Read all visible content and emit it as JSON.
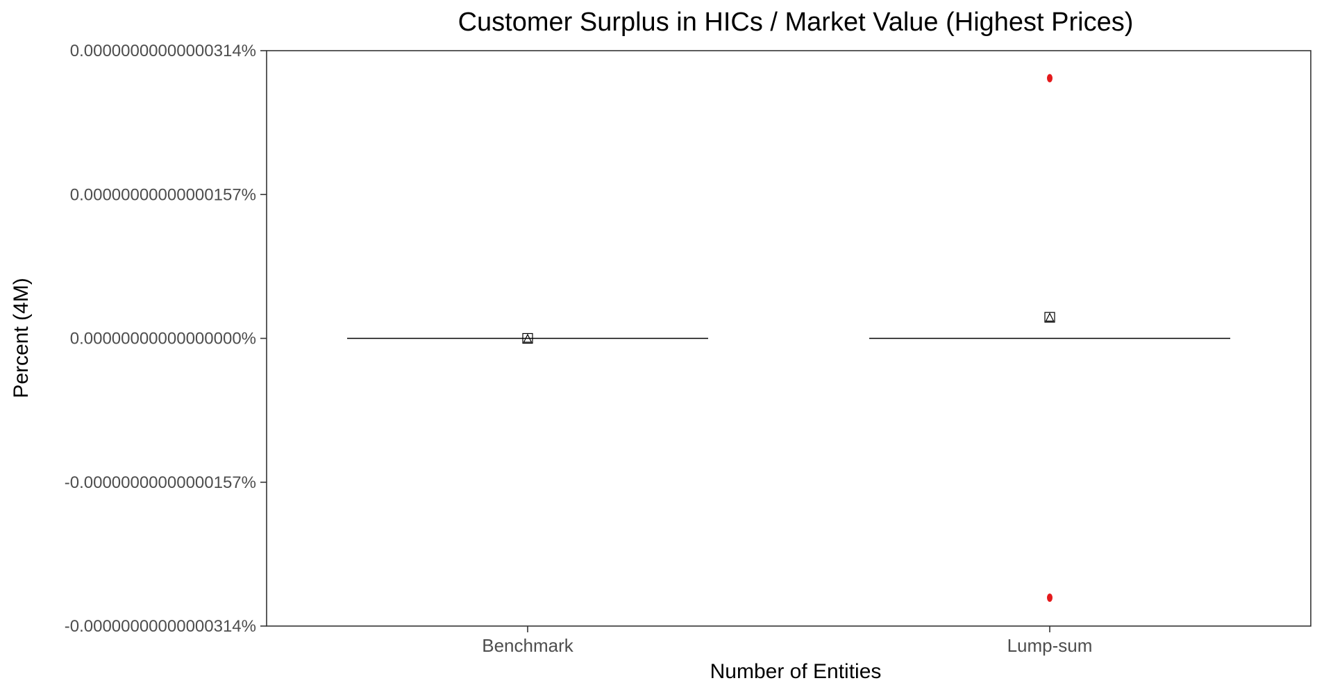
{
  "chart_data": {
    "type": "box",
    "title": "Customer Surplus in HICs / Market Value (Highest Prices)",
    "xlabel": "Number of Entities",
    "ylabel": "Percent (4M)",
    "categories": [
      "Benchmark",
      "Lump-sum"
    ],
    "y_ticks": [
      {
        "value": 3.14e-15,
        "label": "0.00000000000000314%"
      },
      {
        "value": 1.57e-15,
        "label": "0.00000000000000157%"
      },
      {
        "value": 0,
        "label": "0.00000000000000000%"
      },
      {
        "value": -1.57e-15,
        "label": "-0.00000000000000157%"
      },
      {
        "value": -3.14e-15,
        "label": "-0.00000000000000314%"
      }
    ],
    "ylim": [
      -3.14e-15,
      3.14e-15
    ],
    "grid": false,
    "legend": "none",
    "boxes": [
      {
        "category": "Benchmark",
        "median": 0,
        "q1": 0,
        "q3": 0,
        "whisker_low": 0,
        "whisker_high": 0,
        "mean": 0,
        "outliers": []
      },
      {
        "category": "Lump-sum",
        "median": 0,
        "q1": 0,
        "q3": 0,
        "whisker_low": 0,
        "whisker_high": 0,
        "mean": 2.3e-16,
        "outliers": [
          2.84e-15,
          -2.83e-15
        ]
      }
    ],
    "colors": {
      "box_line": "#000000",
      "outlier": "#e41a1c",
      "mean_marker": "#000000",
      "axis": "#333333"
    }
  }
}
